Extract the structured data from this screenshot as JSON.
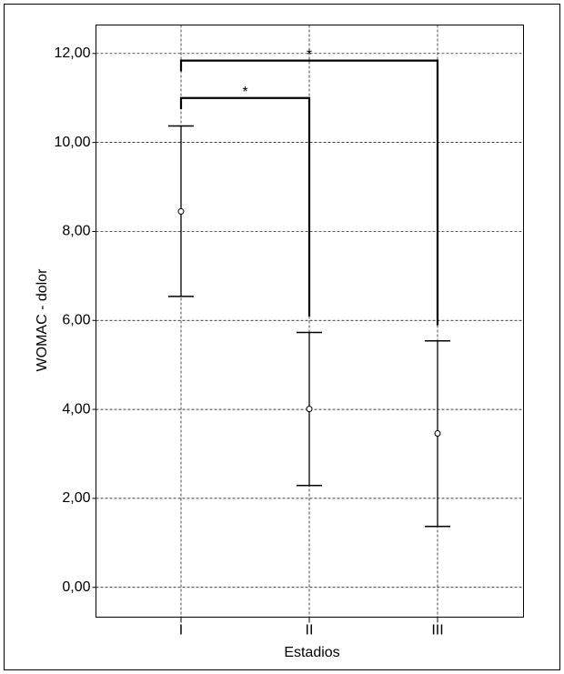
{
  "chart_data": {
    "type": "errorbar",
    "y_label": "WOMAC - dolor",
    "x_label": "Estadios",
    "categories": [
      "I",
      "II",
      "III"
    ],
    "values": [
      8.45,
      4.01,
      3.46
    ],
    "lower": [
      6.54,
      2.29,
      1.37
    ],
    "upper": [
      10.37,
      5.73,
      5.54
    ],
    "ylim": [
      -0.67,
      12.64
    ],
    "yticks": [
      {
        "value": 0,
        "label": "0,00"
      },
      {
        "value": 2,
        "label": "2,00"
      },
      {
        "value": 4,
        "label": "4,00"
      },
      {
        "value": 6,
        "label": "6,00"
      },
      {
        "value": 8,
        "label": "8,00"
      },
      {
        "value": 10,
        "label": "10,00"
      },
      {
        "value": 12,
        "label": "12,00"
      }
    ],
    "grid": true,
    "brackets": [
      {
        "from": 0,
        "to": 1,
        "y": 11.0,
        "y_left": 10.75,
        "y_right": 6.09,
        "label": "*"
      },
      {
        "from": 0,
        "to": 2,
        "y": 11.84,
        "y_left": 11.6,
        "y_right": 5.89,
        "label": "*"
      }
    ]
  }
}
